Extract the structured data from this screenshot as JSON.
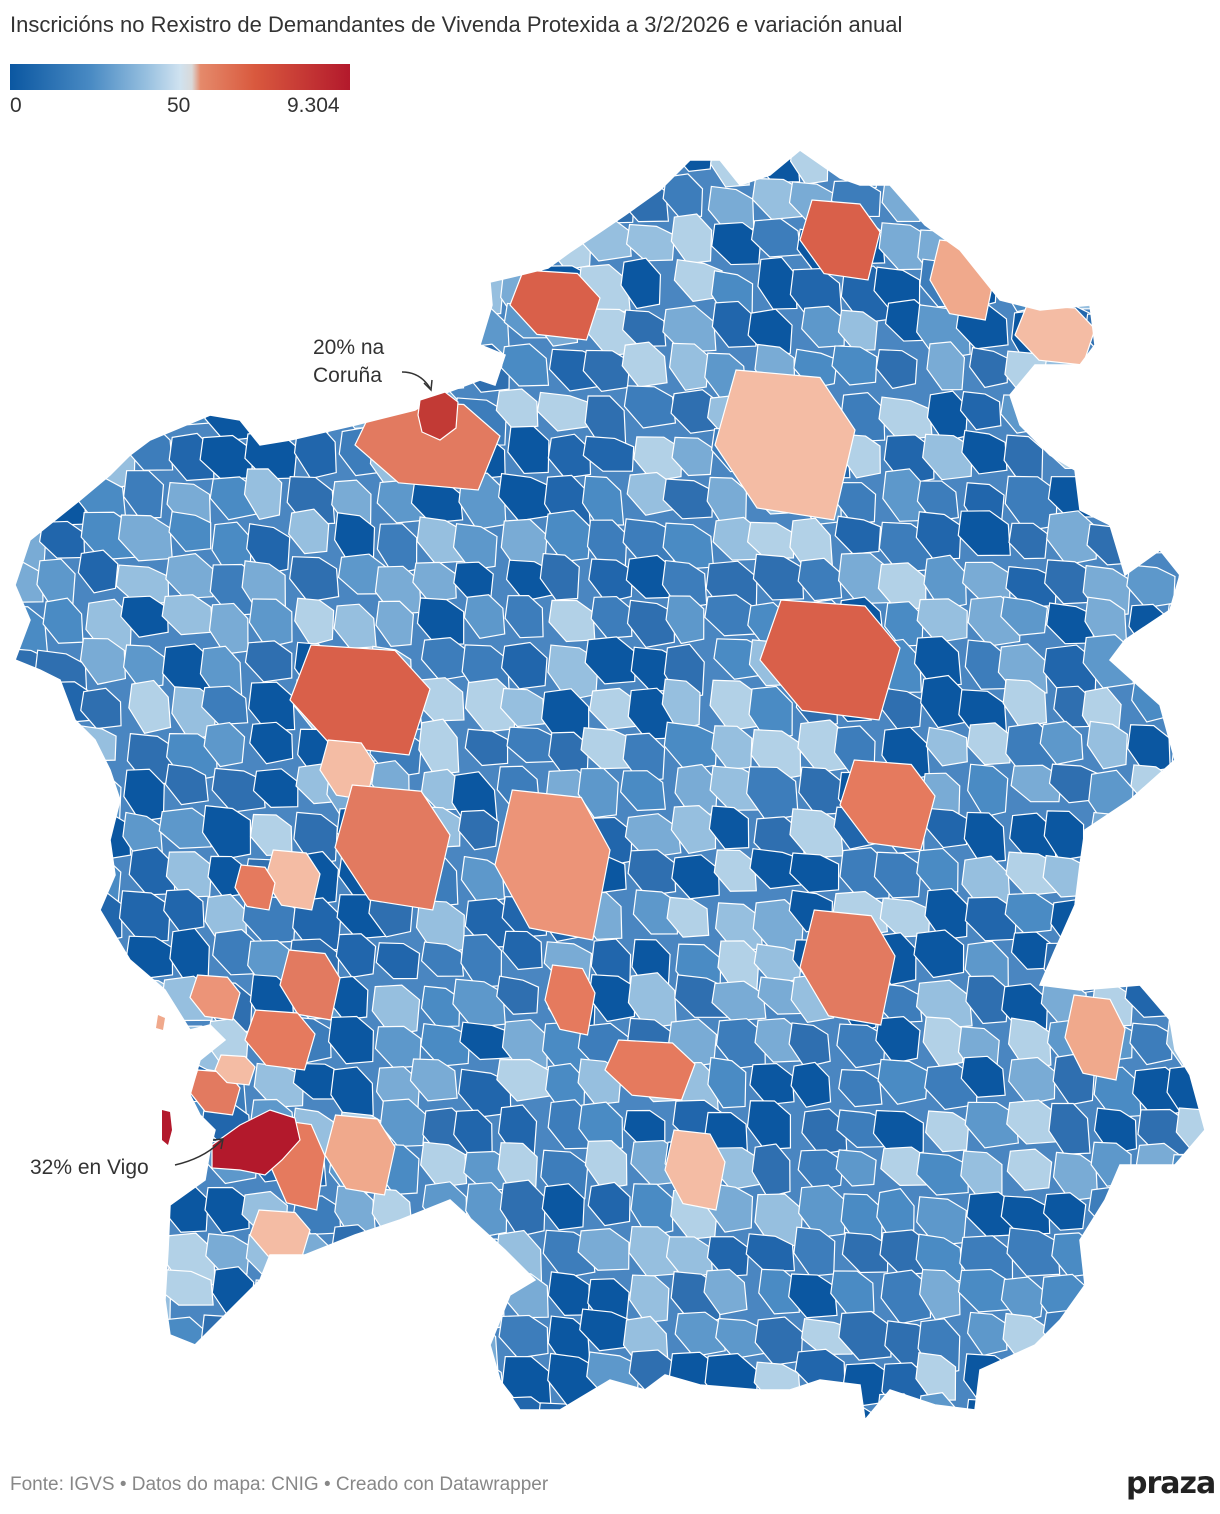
{
  "title": "Inscricións no Rexistro de Demandantes de Vivenda Protexida a 3/2/2026 e variación anual",
  "legend": {
    "min_label": "0",
    "mid_label": "50",
    "max_label": "9.304",
    "colors": [
      "#0b57a1",
      "#4a8bc4",
      "#96bfdf",
      "#cfe2f0",
      "#e58a6b",
      "#d9593e",
      "#b3192c"
    ]
  },
  "annotations": {
    "coruna_line1": "20% na",
    "coruna_line2": "Coruña",
    "vigo": "32% en Vigo"
  },
  "map": {
    "region": "Galicia",
    "highlighted": [
      {
        "name": "A Coruña",
        "color": "#c23a35"
      },
      {
        "name": "Vigo",
        "color": "#b3192c"
      }
    ]
  },
  "footer": {
    "text": "Fonte: IGVS • Datos do mapa: CNIG  • Creado con Datawrapper",
    "logo": "praza"
  }
}
